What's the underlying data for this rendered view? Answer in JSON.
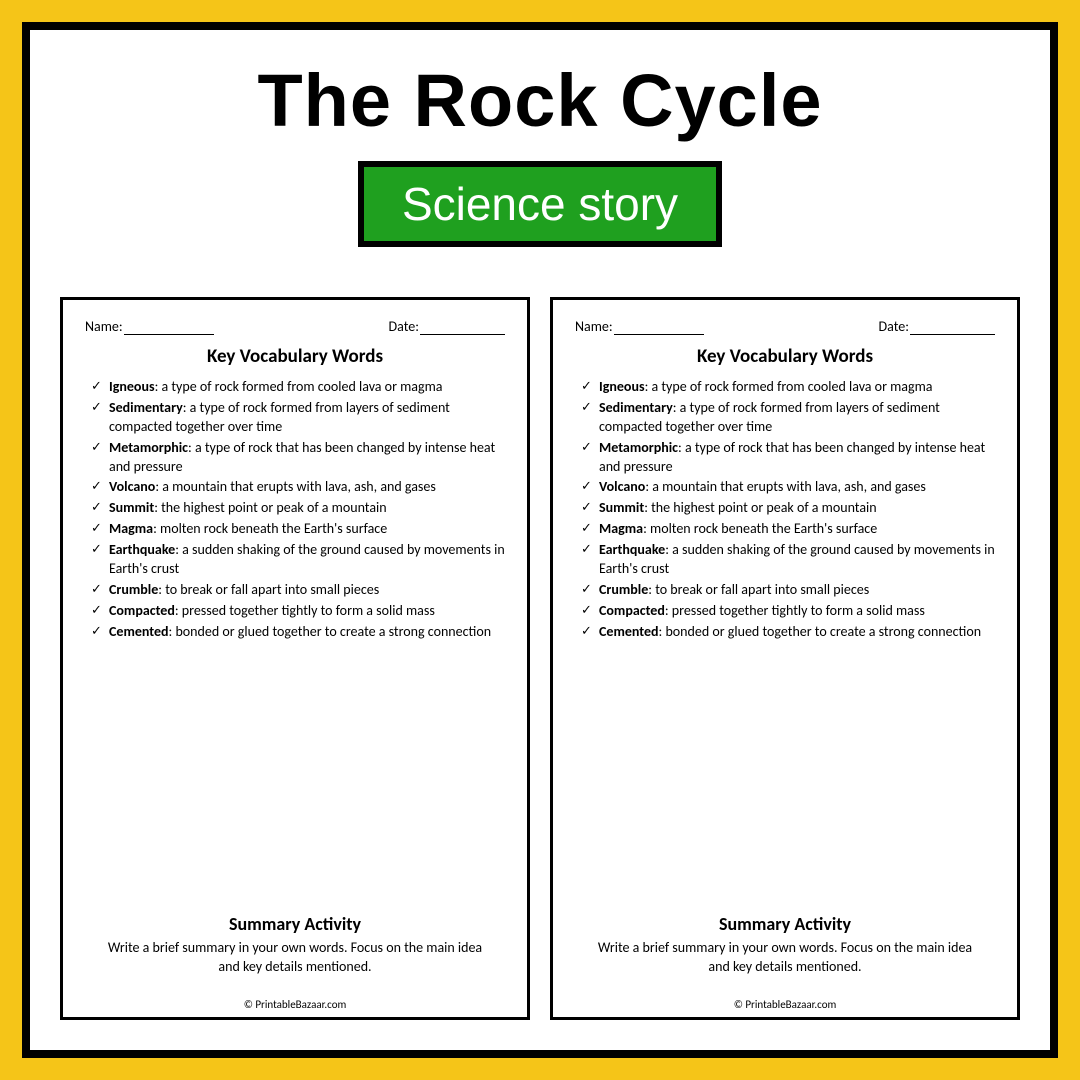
{
  "title": "The Rock Cycle",
  "subtitle": "Science story",
  "colors": {
    "outer_bg": "#f5c518",
    "frame_border": "#000000",
    "inner_bg": "#ffffff",
    "subtitle_bg": "#1fa01f",
    "subtitle_border": "#000000",
    "subtitle_text": "#ffffff",
    "worksheet_border": "#000000"
  },
  "worksheet": {
    "name_label": "Name:",
    "date_label": "Date:",
    "section_title": "Key Vocabulary Words",
    "vocab": [
      {
        "term": "Igneous",
        "def": ": a type of rock formed from cooled lava or magma"
      },
      {
        "term": "Sedimentary",
        "def": ": a type of rock formed from layers of sediment compacted together over time"
      },
      {
        "term": "Metamorphic",
        "def": ": a type of rock that has been changed by intense heat and pressure"
      },
      {
        "term": "Volcano",
        "def": ": a mountain that erupts with lava, ash, and gases"
      },
      {
        "term": "Summit",
        "def": ": the highest point or peak of a mountain"
      },
      {
        "term": "Magma",
        "def": ": molten rock beneath the Earth's surface"
      },
      {
        "term": "Earthquake",
        "def": ": a sudden shaking of the ground caused by movements in Earth's crust"
      },
      {
        "term": "Crumble",
        "def": ": to break or fall apart into small pieces"
      },
      {
        "term": "Compacted",
        "def": ": pressed together tightly to form a solid mass"
      },
      {
        "term": "Cemented",
        "def": ": bonded or glued together to create a strong connection"
      }
    ],
    "summary_title": "Summary Activity",
    "summary_text": "Write a brief summary in your own words. Focus on the main idea and key details mentioned.",
    "copyright": "© PrintableBazaar.com"
  }
}
